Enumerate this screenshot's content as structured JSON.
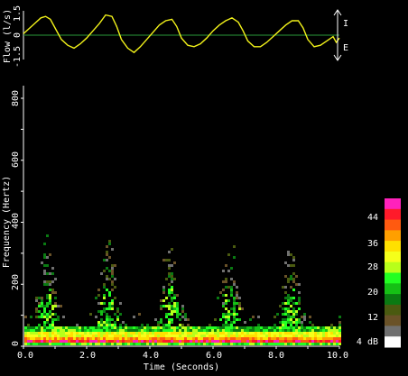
{
  "chart_data": [
    {
      "type": "line",
      "ylabel": "Flow (l/s)",
      "ylim": [
        -1.5,
        1.5
      ],
      "ytick_labels": [
        "1.5",
        "0",
        "-1.5"
      ],
      "zero_line": true,
      "direction_labels": {
        "up": "I",
        "down": "E"
      },
      "series": [
        {
          "color": "#f2f21a",
          "x": [
            0.0,
            0.2,
            0.4,
            0.55,
            0.7,
            0.85,
            1.0,
            1.2,
            1.4,
            1.6,
            1.8,
            2.0,
            2.2,
            2.4,
            2.6,
            2.8,
            2.95,
            3.1,
            3.3,
            3.5,
            3.7,
            3.9,
            4.1,
            4.3,
            4.5,
            4.7,
            4.85,
            5.0,
            5.2,
            5.4,
            5.6,
            5.8,
            6.0,
            6.2,
            6.4,
            6.6,
            6.8,
            6.95,
            7.1,
            7.3,
            7.5,
            7.7,
            7.9,
            8.1,
            8.3,
            8.5,
            8.7,
            8.85,
            9.0,
            9.2,
            9.4,
            9.6,
            9.8,
            9.9,
            10.0
          ],
          "y": [
            0.1,
            0.5,
            0.9,
            1.2,
            1.3,
            1.1,
            0.5,
            -0.3,
            -0.7,
            -0.9,
            -0.6,
            -0.2,
            0.3,
            0.8,
            1.4,
            1.3,
            0.6,
            -0.3,
            -0.9,
            -1.2,
            -0.8,
            -0.3,
            0.2,
            0.7,
            1.0,
            1.1,
            0.6,
            -0.2,
            -0.7,
            -0.8,
            -0.6,
            -0.2,
            0.3,
            0.7,
            1.0,
            1.2,
            0.9,
            0.3,
            -0.4,
            -0.8,
            -0.8,
            -0.5,
            -0.1,
            0.3,
            0.7,
            1.0,
            1.0,
            0.5,
            -0.3,
            -0.8,
            -0.7,
            -0.4,
            -0.1,
            -0.5,
            -0.2
          ]
        }
      ]
    },
    {
      "type": "heatmap",
      "xlabel": "Time (Seconds)",
      "ylabel": "Frequency (Hertz)",
      "xlim": [
        0,
        10
      ],
      "ylim": [
        0,
        800
      ],
      "xtick_labels": [
        "0.0",
        "2.0",
        "4.0",
        "6.0",
        "8.0",
        "10.0"
      ],
      "ytick_labels": [
        "0",
        "200",
        "400",
        "600",
        "800"
      ],
      "burst_centers_seconds": [
        0.7,
        2.6,
        4.6,
        6.5,
        8.4
      ],
      "colorbar": {
        "unit_label": "4 dB",
        "tick_labels": [
          "44",
          "36",
          "28",
          "20",
          "12"
        ],
        "colors": [
          "#ff22bb",
          "#ff1a2a",
          "#ff5a10",
          "#ff9f00",
          "#ffe000",
          "#f5ff1a",
          "#b8ff1a",
          "#22ff22",
          "#15c015",
          "#0a7a12",
          "#4a5a10",
          "#6a5228",
          "#707070",
          "#ffffff"
        ]
      }
    }
  ]
}
